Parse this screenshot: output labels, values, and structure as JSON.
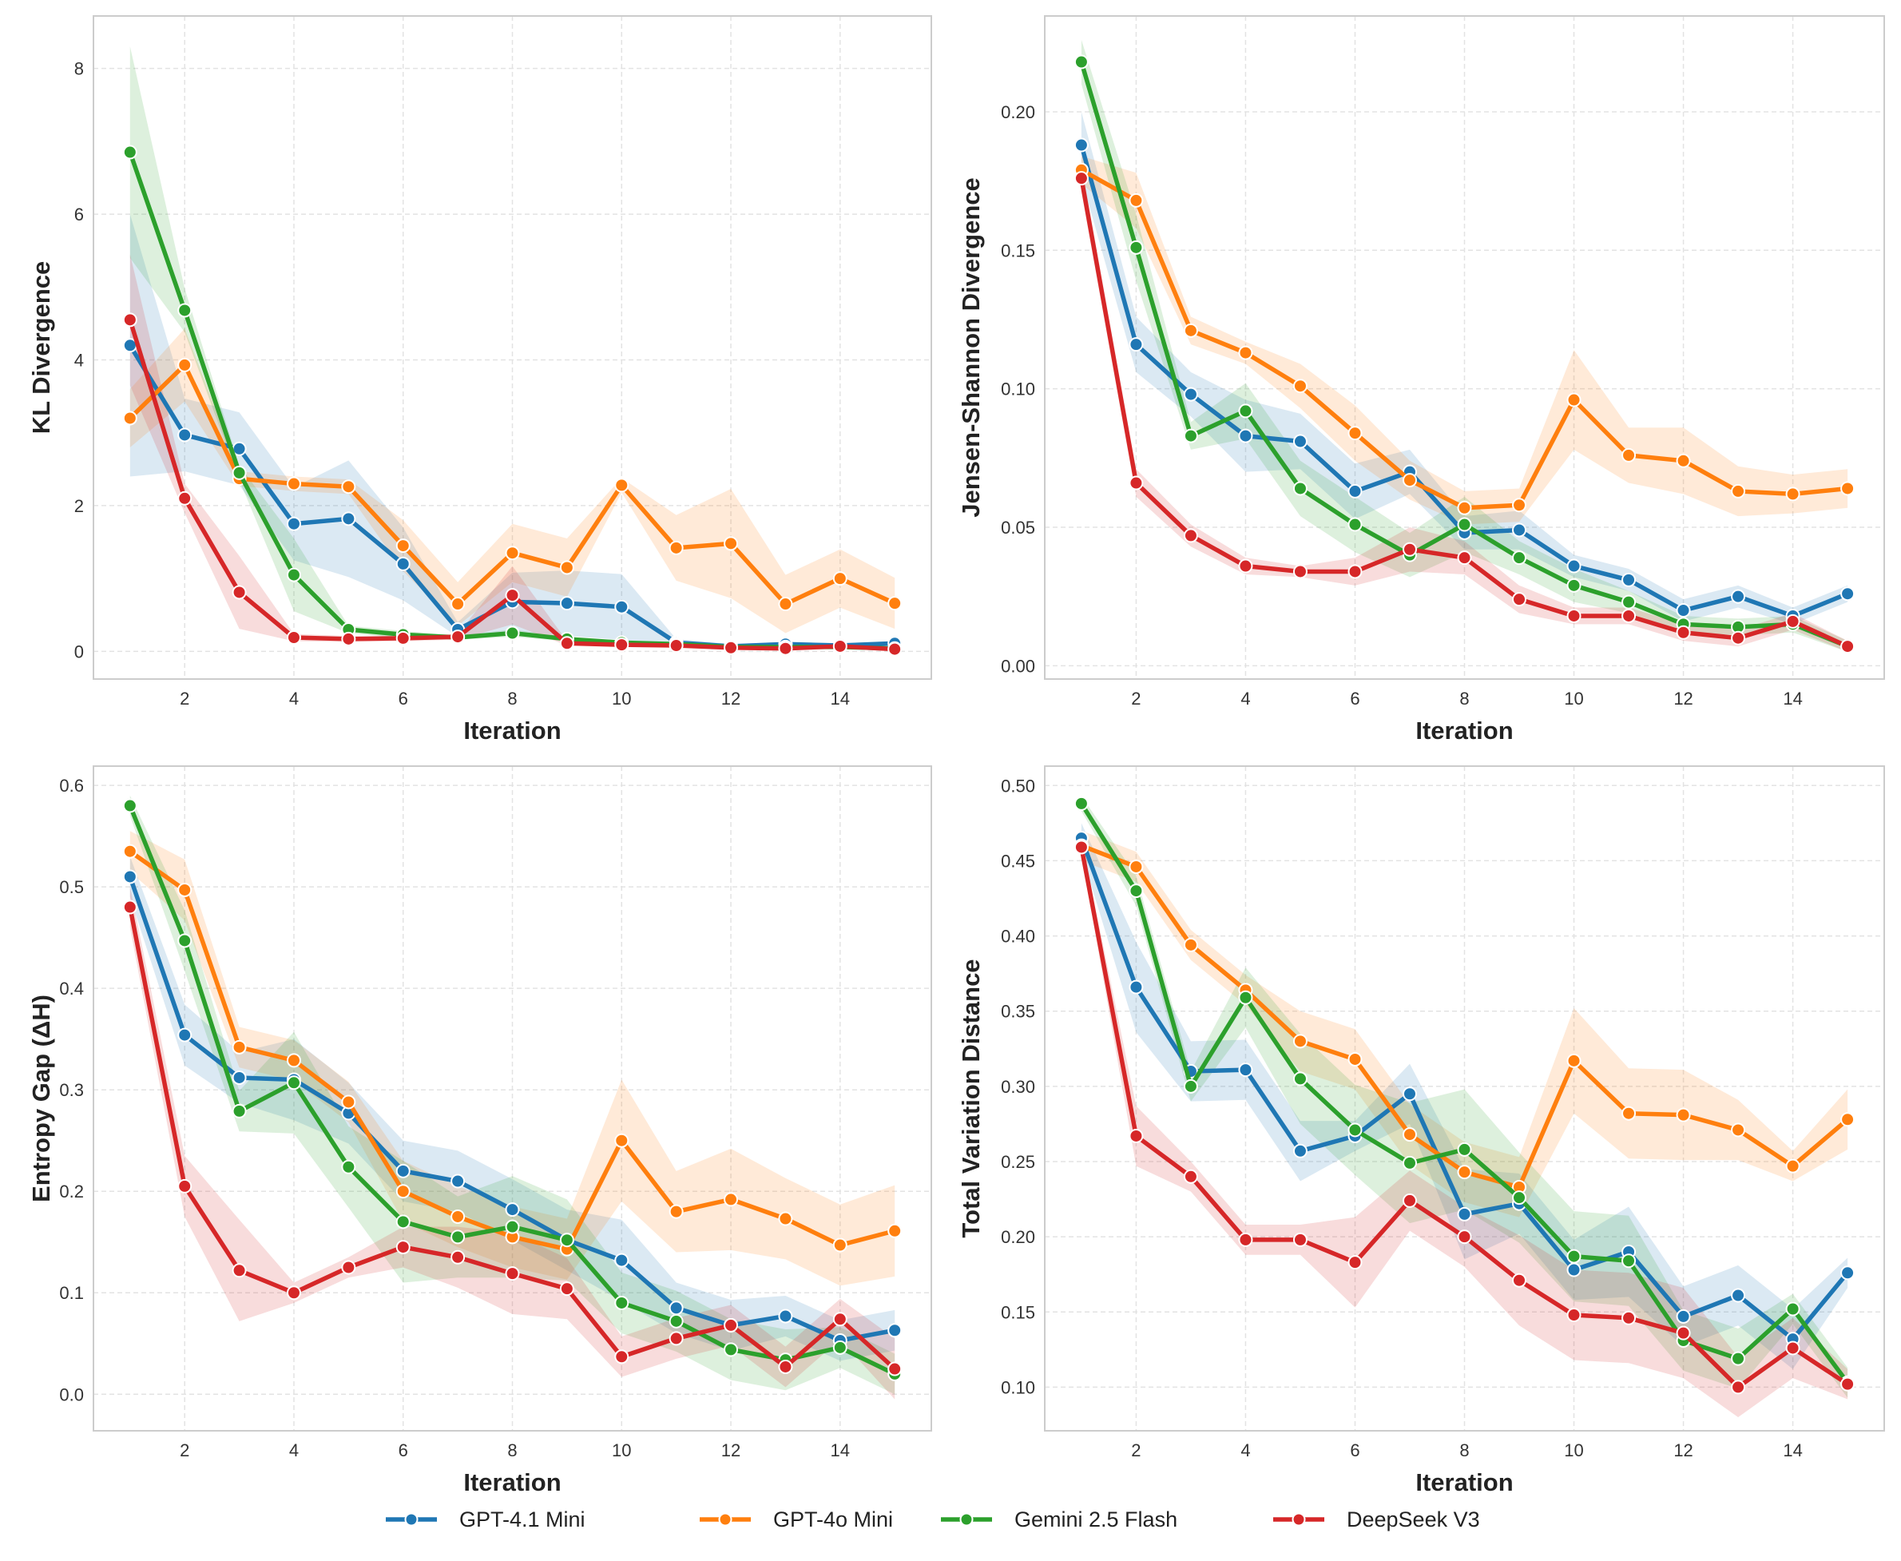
{
  "chart_data": [
    {
      "type": "line",
      "xlabel": "Iteration",
      "ylabel": "KL Divergence",
      "x": [
        1,
        2,
        3,
        4,
        5,
        6,
        7,
        8,
        9,
        10,
        11,
        12,
        13,
        14,
        15
      ],
      "xticks": [
        2,
        4,
        6,
        8,
        10,
        12,
        14
      ],
      "xlim": [
        0.33,
        15.67
      ],
      "ylim": [
        -0.38,
        8.72
      ],
      "yticks": [
        0,
        2,
        4,
        6,
        8
      ],
      "ytick_labels": [
        "0",
        "2",
        "4",
        "6",
        "8"
      ],
      "grid": true,
      "series": [
        {
          "name": "GPT-4.1 Mini",
          "values": [
            4.2,
            2.97,
            2.78,
            1.75,
            1.82,
            1.2,
            0.3,
            0.68,
            0.66,
            0.61,
            0.12,
            0.07,
            0.1,
            0.08,
            0.11
          ],
          "ci": [
            1.8,
            0.5,
            0.5,
            0.5,
            0.8,
            0.5,
            0.1,
            0.4,
            0.45,
            0.45,
            0.05,
            0.03,
            0.03,
            0.03,
            0.03
          ]
        },
        {
          "name": "GPT-4o Mini",
          "values": [
            3.2,
            3.93,
            2.37,
            2.3,
            2.26,
            1.45,
            0.65,
            1.35,
            1.15,
            2.28,
            1.42,
            1.48,
            0.65,
            1.0,
            0.66
          ],
          "ci": [
            0.4,
            0.5,
            0.1,
            0.1,
            0.1,
            0.35,
            0.3,
            0.4,
            0.4,
            0.1,
            0.45,
            0.75,
            0.4,
            0.4,
            0.35
          ]
        },
        {
          "name": "Gemini 2.5 Flash",
          "values": [
            6.85,
            4.68,
            2.45,
            1.05,
            0.3,
            0.23,
            0.19,
            0.25,
            0.17,
            0.12,
            0.1,
            0.06,
            0.06,
            0.06,
            0.04
          ],
          "ci": [
            1.45,
            0.3,
            0.1,
            0.5,
            0.05,
            0.05,
            0.03,
            0.05,
            0.03,
            0.02,
            0.02,
            0.02,
            0.02,
            0.02,
            0.02
          ]
        },
        {
          "name": "DeepSeek V3",
          "values": [
            4.55,
            2.1,
            0.81,
            0.19,
            0.17,
            0.18,
            0.2,
            0.77,
            0.11,
            0.09,
            0.08,
            0.05,
            0.04,
            0.07,
            0.03
          ],
          "ci": [
            0.9,
            0.2,
            0.5,
            0.05,
            0.04,
            0.04,
            0.04,
            0.4,
            0.03,
            0.02,
            0.02,
            0.02,
            0.02,
            0.02,
            0.02
          ]
        }
      ]
    },
    {
      "type": "line",
      "xlabel": "Iteration",
      "ylabel": "Jensen-Shannon Divergence",
      "x": [
        1,
        2,
        3,
        4,
        5,
        6,
        7,
        8,
        9,
        10,
        11,
        12,
        13,
        14,
        15
      ],
      "xticks": [
        2,
        4,
        6,
        8,
        10,
        12,
        14
      ],
      "xlim": [
        0.33,
        15.67
      ],
      "ylim": [
        -0.0048,
        0.2346
      ],
      "yticks": [
        0,
        0.05,
        0.1,
        0.15,
        0.2
      ],
      "ytick_labels": [
        "0.00",
        "0.05",
        "0.10",
        "0.15",
        "0.20"
      ],
      "grid": true,
      "series": [
        {
          "name": "GPT-4.1 Mini",
          "values": [
            0.188,
            0.116,
            0.098,
            0.083,
            0.081,
            0.063,
            0.07,
            0.048,
            0.049,
            0.036,
            0.031,
            0.02,
            0.025,
            0.018,
            0.026
          ],
          "ci": [
            0.012,
            0.01,
            0.008,
            0.013,
            0.01,
            0.01,
            0.008,
            0.006,
            0.007,
            0.004,
            0.004,
            0.004,
            0.004,
            0.003,
            0.003
          ]
        },
        {
          "name": "GPT-4o Mini",
          "values": [
            0.179,
            0.168,
            0.121,
            0.113,
            0.101,
            0.084,
            0.067,
            0.057,
            0.058,
            0.096,
            0.076,
            0.074,
            0.063,
            0.062,
            0.064
          ],
          "ci": [
            0.005,
            0.01,
            0.005,
            0.004,
            0.008,
            0.01,
            0.007,
            0.006,
            0.006,
            0.018,
            0.01,
            0.012,
            0.009,
            0.007,
            0.007
          ]
        },
        {
          "name": "Gemini 2.5 Flash",
          "values": [
            0.218,
            0.151,
            0.083,
            0.092,
            0.064,
            0.051,
            0.04,
            0.051,
            0.039,
            0.029,
            0.023,
            0.015,
            0.014,
            0.015,
            0.007
          ],
          "ci": [
            0.008,
            0.012,
            0.005,
            0.01,
            0.01,
            0.01,
            0.008,
            0.01,
            0.006,
            0.006,
            0.004,
            0.003,
            0.003,
            0.003,
            0.002
          ]
        },
        {
          "name": "DeepSeek V3",
          "values": [
            0.176,
            0.066,
            0.047,
            0.036,
            0.034,
            0.034,
            0.042,
            0.039,
            0.024,
            0.018,
            0.018,
            0.012,
            0.01,
            0.016,
            0.007
          ],
          "ci": [
            0.005,
            0.005,
            0.004,
            0.003,
            0.002,
            0.005,
            0.008,
            0.006,
            0.005,
            0.003,
            0.003,
            0.003,
            0.003,
            0.003,
            0.002
          ]
        }
      ]
    },
    {
      "type": "line",
      "xlabel": "Iteration",
      "ylabel": "Entropy Gap (ΔH)",
      "x": [
        1,
        2,
        3,
        4,
        5,
        6,
        7,
        8,
        9,
        10,
        11,
        12,
        13,
        14,
        15
      ],
      "xticks": [
        2,
        4,
        6,
        8,
        10,
        12,
        14
      ],
      "xlim": [
        0.33,
        15.67
      ],
      "ylim": [
        -0.036,
        0.619
      ],
      "yticks": [
        0,
        0.1,
        0.2,
        0.3,
        0.4,
        0.5,
        0.6
      ],
      "ytick_labels": [
        "0.0",
        "0.1",
        "0.2",
        "0.3",
        "0.4",
        "0.5",
        "0.6"
      ],
      "grid": true,
      "series": [
        {
          "name": "GPT-4.1 Mini",
          "values": [
            0.51,
            0.354,
            0.312,
            0.31,
            0.277,
            0.22,
            0.21,
            0.182,
            0.152,
            0.132,
            0.085,
            0.068,
            0.077,
            0.053,
            0.063
          ],
          "ci": [
            0.02,
            0.03,
            0.025,
            0.04,
            0.03,
            0.03,
            0.03,
            0.03,
            0.03,
            0.04,
            0.025,
            0.025,
            0.02,
            0.02,
            0.02
          ]
        },
        {
          "name": "GPT-4o Mini",
          "values": [
            0.535,
            0.497,
            0.342,
            0.329,
            0.288,
            0.2,
            0.175,
            0.155,
            0.143,
            0.25,
            0.18,
            0.192,
            0.173,
            0.147,
            0.161
          ],
          "ci": [
            0.02,
            0.03,
            0.02,
            0.02,
            0.02,
            0.03,
            0.03,
            0.03,
            0.03,
            0.06,
            0.04,
            0.05,
            0.04,
            0.04,
            0.045
          ]
        },
        {
          "name": "Gemini 2.5 Flash",
          "values": [
            0.58,
            0.447,
            0.279,
            0.307,
            0.224,
            0.17,
            0.155,
            0.165,
            0.152,
            0.09,
            0.072,
            0.044,
            0.034,
            0.046,
            0.02
          ],
          "ci": [
            0.01,
            0.03,
            0.02,
            0.05,
            0.04,
            0.06,
            0.04,
            0.05,
            0.04,
            0.03,
            0.03,
            0.03,
            0.03,
            0.02,
            0.02
          ]
        },
        {
          "name": "DeepSeek V3",
          "values": [
            0.48,
            0.205,
            0.122,
            0.1,
            0.125,
            0.145,
            0.135,
            0.119,
            0.104,
            0.037,
            0.055,
            0.068,
            0.027,
            0.074,
            0.025
          ],
          "ci": [
            0.02,
            0.03,
            0.05,
            0.01,
            0.01,
            0.02,
            0.03,
            0.04,
            0.03,
            0.02,
            0.02,
            0.02,
            0.02,
            0.02,
            0.03
          ]
        }
      ]
    },
    {
      "type": "line",
      "xlabel": "Iteration",
      "ylabel": "Total Variation Distance",
      "x": [
        1,
        2,
        3,
        4,
        5,
        6,
        7,
        8,
        9,
        10,
        11,
        12,
        13,
        14,
        15
      ],
      "xticks": [
        2,
        4,
        6,
        8,
        10,
        12,
        14
      ],
      "xlim": [
        0.33,
        15.67
      ],
      "ylim": [
        0.071,
        0.5129
      ],
      "yticks": [
        0.1,
        0.15,
        0.2,
        0.25,
        0.3,
        0.35,
        0.4,
        0.45,
        0.5
      ],
      "ytick_labels": [
        "0.10",
        "0.15",
        "0.20",
        "0.25",
        "0.30",
        "0.35",
        "0.40",
        "0.45",
        "0.50"
      ],
      "grid": true,
      "series": [
        {
          "name": "GPT-4.1 Mini",
          "values": [
            0.465,
            0.366,
            0.31,
            0.311,
            0.257,
            0.267,
            0.295,
            0.215,
            0.222,
            0.178,
            0.19,
            0.147,
            0.161,
            0.132,
            0.176
          ],
          "ci": [
            0.01,
            0.03,
            0.02,
            0.02,
            0.02,
            0.01,
            0.02,
            0.03,
            0.02,
            0.02,
            0.03,
            0.02,
            0.02,
            0.02,
            0.01
          ]
        },
        {
          "name": "GPT-4o Mini",
          "values": [
            0.46,
            0.446,
            0.394,
            0.364,
            0.33,
            0.318,
            0.268,
            0.243,
            0.233,
            0.317,
            0.282,
            0.281,
            0.271,
            0.247,
            0.278
          ],
          "ci": [
            0.01,
            0.01,
            0.01,
            0.01,
            0.02,
            0.02,
            0.02,
            0.02,
            0.02,
            0.035,
            0.03,
            0.03,
            0.02,
            0.01,
            0.02
          ]
        },
        {
          "name": "Gemini 2.5 Flash",
          "values": [
            0.488,
            0.43,
            0.3,
            0.359,
            0.305,
            0.271,
            0.249,
            0.258,
            0.226,
            0.187,
            0.184,
            0.131,
            0.119,
            0.152,
            0.103
          ],
          "ci": [
            0.005,
            0.01,
            0.01,
            0.02,
            0.03,
            0.03,
            0.04,
            0.04,
            0.03,
            0.03,
            0.03,
            0.02,
            0.02,
            0.01,
            0.01
          ]
        },
        {
          "name": "DeepSeek V3",
          "values": [
            0.459,
            0.267,
            0.24,
            0.198,
            0.198,
            0.183,
            0.224,
            0.2,
            0.171,
            0.148,
            0.146,
            0.136,
            0.1,
            0.126,
            0.102
          ],
          "ci": [
            0.005,
            0.02,
            0.01,
            0.01,
            0.01,
            0.03,
            0.02,
            0.02,
            0.03,
            0.03,
            0.03,
            0.03,
            0.02,
            0.02,
            0.01
          ]
        }
      ]
    }
  ],
  "legend": {
    "placement": "bottom-center",
    "items": [
      {
        "label": "GPT-4.1 Mini",
        "color": "#1f77b4"
      },
      {
        "label": "GPT-4o Mini",
        "color": "#ff7f0e"
      },
      {
        "label": "Gemini 2.5 Flash",
        "color": "#2ca02c"
      },
      {
        "label": "DeepSeek V3",
        "color": "#d62728"
      }
    ]
  }
}
